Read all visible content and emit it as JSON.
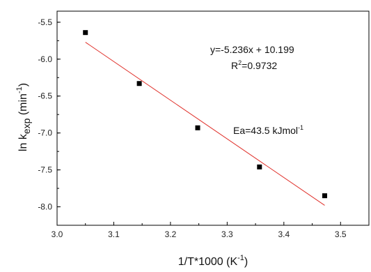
{
  "chart_data": {
    "type": "scatter",
    "xlabel": "1/T*1000 (K",
    "xlabel_sup": "-1",
    "xlabel_close": ")",
    "ylabel": "ln k",
    "ylabel_sub": "exp",
    "ylabel_unit": " (min",
    "ylabel_sup": "-1",
    "ylabel_close": ")",
    "xlim": [
      3.0,
      3.55
    ],
    "ylim": [
      -8.25,
      -5.35
    ],
    "x_ticks": [
      3.0,
      3.1,
      3.2,
      3.3,
      3.4,
      3.5
    ],
    "x_tick_labels": [
      "3.0",
      "3.1",
      "3.2",
      "3.3",
      "3.4",
      "3.5"
    ],
    "y_ticks": [
      -5.5,
      -6.0,
      -6.5,
      -7.0,
      -7.5,
      -8.0
    ],
    "y_tick_labels": [
      "-5.5",
      "-6.0",
      "-6.5",
      "-7.0",
      "-7.5",
      "-8.0"
    ],
    "points": [
      {
        "x": 3.05,
        "y": -5.64
      },
      {
        "x": 3.145,
        "y": -6.33
      },
      {
        "x": 3.248,
        "y": -6.93
      },
      {
        "x": 3.357,
        "y": -7.46
      },
      {
        "x": 3.472,
        "y": -7.85
      }
    ],
    "fit": {
      "slope": -5.236,
      "intercept": 10.199,
      "x_range": [
        3.05,
        3.472
      ]
    },
    "marker_color": "#000000",
    "fit_color": "#e0312b",
    "annotations": {
      "equation": "y=-5.236x + 10.199",
      "r2_prefix": "R",
      "r2_sup": "2",
      "r2_value": "=0.9732",
      "ea_text": "Ea=43.5 kJmol",
      "ea_sup": "-1"
    },
    "grid": false
  }
}
